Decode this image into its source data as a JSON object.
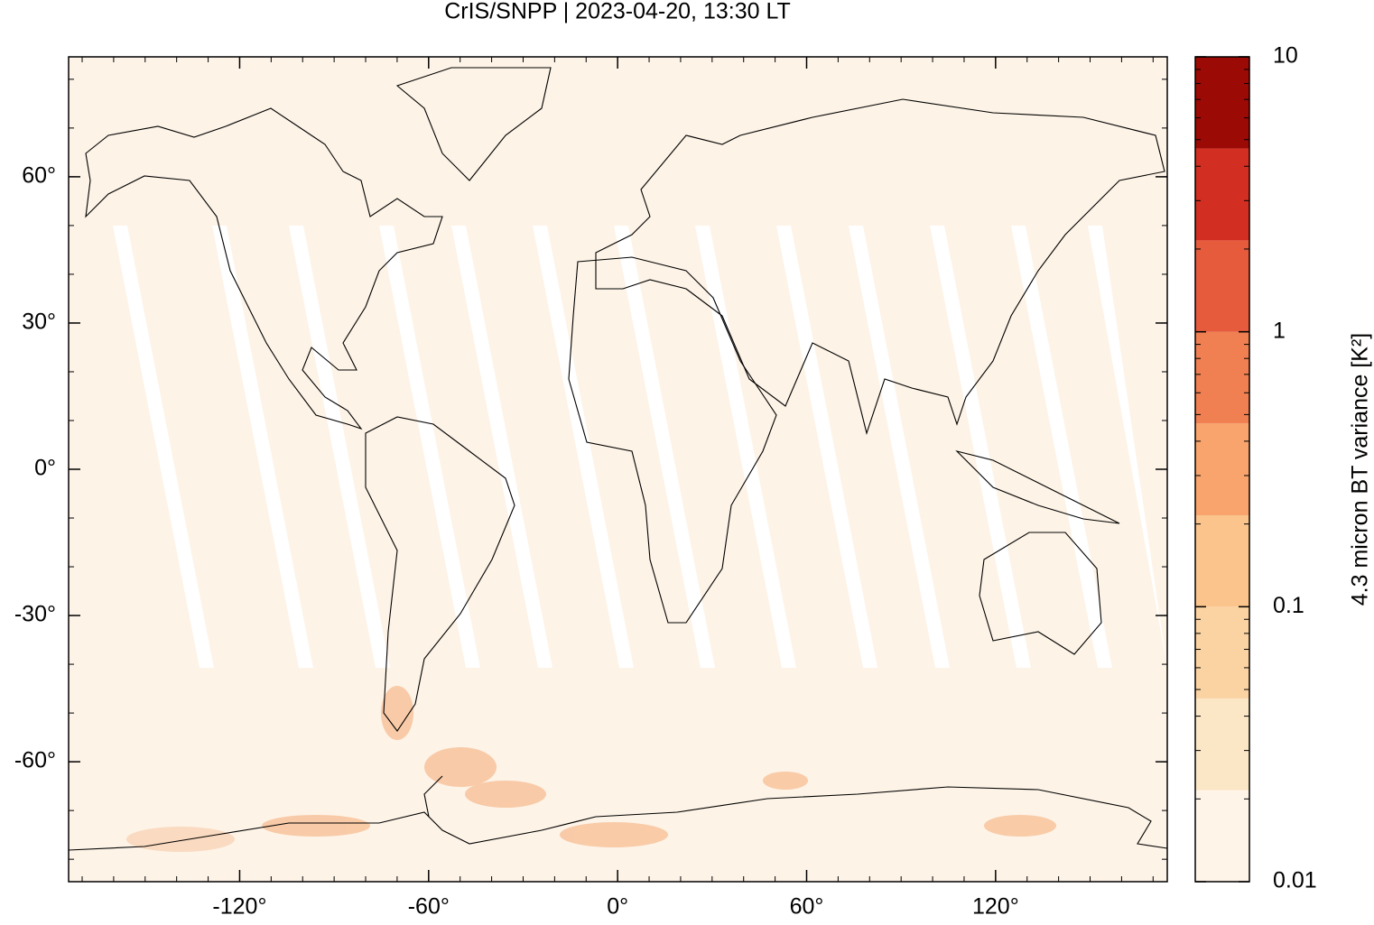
{
  "chart_data": {
    "type": "map",
    "title": "CrIS/SNPP | 2023-04-20, 13:30 LT",
    "xlim": [
      -174.3,
      174.5
    ],
    "ylim": [
      -84.6,
      84.6
    ],
    "xticks": [
      {
        "value": -120,
        "label": "-120°"
      },
      {
        "value": -60,
        "label": "-60°"
      },
      {
        "value": 0,
        "label": "0°"
      },
      {
        "value": 60,
        "label": "60°"
      },
      {
        "value": 120,
        "label": "120°"
      }
    ],
    "yticks": [
      {
        "value": -60,
        "label": "-60°"
      },
      {
        "value": -30,
        "label": "-30°"
      },
      {
        "value": 0,
        "label": "0°"
      },
      {
        "value": 30,
        "label": "30°"
      },
      {
        "value": 60,
        "label": "60°"
      }
    ],
    "colorbar": {
      "label": "4.3 micron BT variance [K²]",
      "log_scale": true,
      "lim": [
        0.01,
        10
      ],
      "ticks": [
        0.01,
        0.1,
        1,
        10
      ],
      "levels": [
        0.01,
        0.0215,
        0.0464,
        0.1,
        0.215,
        0.464,
        1,
        2.15,
        4.64,
        10
      ],
      "colors": [
        "#fef4e8",
        "#fbe6c6",
        "#fbd3a2",
        "#fbc48c",
        "#f9a46c",
        "#f07f52",
        "#e55b3c",
        "#d22f22",
        "#9c0a05"
      ]
    }
  }
}
